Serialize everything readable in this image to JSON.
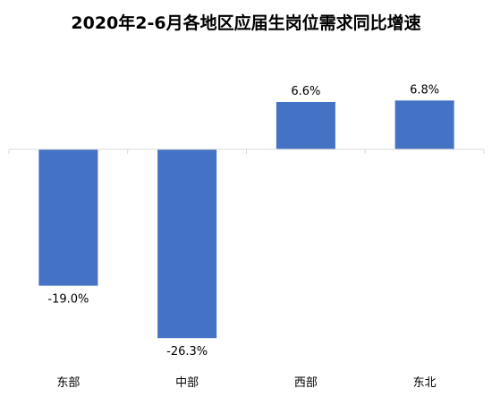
{
  "chart_data": {
    "type": "bar",
    "title": "2020年2-6月各地区应届生岗位需求同比增速",
    "categories": [
      "东部",
      "中部",
      "西部",
      "东北"
    ],
    "values": [
      -19.0,
      -26.3,
      6.6,
      6.8
    ],
    "data_labels": [
      "-19.0%",
      "-26.3%",
      "6.6%",
      "6.8%"
    ],
    "unit": "%",
    "ylim": [
      -30,
      10
    ],
    "grid": false,
    "legend": "none",
    "bar_color": "#4472C4",
    "axis_color": "#D9D9D9"
  }
}
